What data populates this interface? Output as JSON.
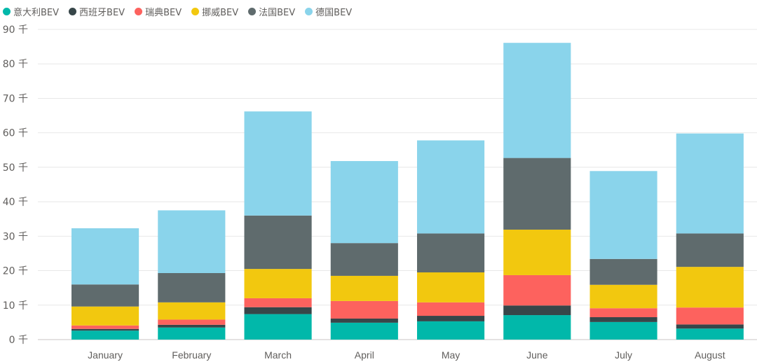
{
  "chart_data": {
    "type": "bar",
    "stacked": true,
    "categories": [
      "January",
      "February",
      "March",
      "April",
      "May",
      "June",
      "July",
      "August"
    ],
    "series": [
      {
        "name": "意大利BEV",
        "color": "#01B8AA",
        "values": [
          2.6,
          3.5,
          7.4,
          4.9,
          5.3,
          7.1,
          5.1,
          3.2
        ]
      },
      {
        "name": "西班牙BEV",
        "color": "#374649",
        "values": [
          0.5,
          0.8,
          2.0,
          1.2,
          1.6,
          2.8,
          1.4,
          1.2
        ]
      },
      {
        "name": "瑞典BEV",
        "color": "#FD625E",
        "values": [
          1.0,
          1.5,
          2.6,
          5.1,
          3.9,
          8.8,
          2.6,
          4.9
        ]
      },
      {
        "name": "挪威BEV",
        "color": "#F2C80F",
        "values": [
          5.5,
          5.0,
          8.5,
          7.3,
          8.7,
          13.2,
          6.8,
          11.8
        ]
      },
      {
        "name": "法国BEV",
        "color": "#5F6B6D",
        "values": [
          6.4,
          8.5,
          15.5,
          9.5,
          11.3,
          20.8,
          7.5,
          9.7
        ]
      },
      {
        "name": "德国BEV",
        "color": "#8AD4EB",
        "values": [
          16.3,
          18.2,
          30.2,
          23.8,
          27.0,
          33.4,
          25.5,
          29.0
        ]
      }
    ],
    "y_ticks": [
      "0 千",
      "10 千",
      "20 千",
      "30 千",
      "40 千",
      "50 千",
      "60 千",
      "70 千",
      "80 千",
      "90 千"
    ],
    "ylim": [
      0,
      90
    ],
    "y_unit": "千",
    "legend_position": "top-left",
    "grid": true
  }
}
